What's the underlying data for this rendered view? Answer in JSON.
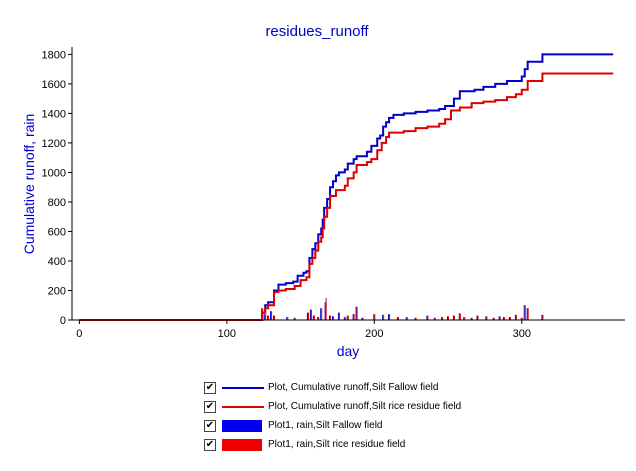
{
  "chart_data": {
    "type": "line",
    "title": "residues_runoff",
    "xlabel": "day",
    "ylabel": "Cumulative runoff, rain",
    "xlim": [
      -5,
      370
    ],
    "ylim": [
      0,
      1850
    ],
    "xticks": [
      0,
      100,
      200,
      300
    ],
    "yticks": [
      0,
      200,
      400,
      600,
      800,
      1000,
      1200,
      1400,
      1600,
      1800
    ],
    "grid": false,
    "legend_position": "bottom",
    "series": [
      {
        "name": "Plot, Cumulative runoff,Silt Fallow field",
        "kind": "line",
        "color": "#0000cc",
        "points": [
          [
            0,
            0
          ],
          [
            122,
            0
          ],
          [
            124,
            50
          ],
          [
            126,
            100
          ],
          [
            128,
            120
          ],
          [
            132,
            200
          ],
          [
            135,
            240
          ],
          [
            140,
            250
          ],
          [
            145,
            260
          ],
          [
            148,
            300
          ],
          [
            152,
            320
          ],
          [
            154,
            330
          ],
          [
            156,
            420
          ],
          [
            158,
            480
          ],
          [
            160,
            520
          ],
          [
            162,
            580
          ],
          [
            164,
            620
          ],
          [
            165,
            680
          ],
          [
            166,
            760
          ],
          [
            168,
            820
          ],
          [
            170,
            900
          ],
          [
            172,
            940
          ],
          [
            174,
            980
          ],
          [
            176,
            1000
          ],
          [
            180,
            1020
          ],
          [
            182,
            1060
          ],
          [
            186,
            1090
          ],
          [
            188,
            1110
          ],
          [
            195,
            1140
          ],
          [
            198,
            1180
          ],
          [
            202,
            1230
          ],
          [
            204,
            1250
          ],
          [
            206,
            1310
          ],
          [
            208,
            1340
          ],
          [
            210,
            1370
          ],
          [
            213,
            1390
          ],
          [
            220,
            1400
          ],
          [
            228,
            1410
          ],
          [
            236,
            1420
          ],
          [
            244,
            1430
          ],
          [
            248,
            1450
          ],
          [
            254,
            1500
          ],
          [
            258,
            1550
          ],
          [
            268,
            1560
          ],
          [
            274,
            1580
          ],
          [
            282,
            1600
          ],
          [
            290,
            1620
          ],
          [
            300,
            1650
          ],
          [
            302,
            1700
          ],
          [
            304,
            1750
          ],
          [
            314,
            1800
          ],
          [
            362,
            1800
          ]
        ]
      },
      {
        "name": "Plot, Cumulative runoff,Silt rice residue field",
        "kind": "line",
        "color": "#dd0000",
        "points": [
          [
            0,
            0
          ],
          [
            122,
            0
          ],
          [
            124,
            50
          ],
          [
            126,
            80
          ],
          [
            128,
            100
          ],
          [
            132,
            190
          ],
          [
            135,
            200
          ],
          [
            140,
            210
          ],
          [
            146,
            230
          ],
          [
            150,
            270
          ],
          [
            154,
            290
          ],
          [
            156,
            380
          ],
          [
            158,
            420
          ],
          [
            160,
            470
          ],
          [
            162,
            530
          ],
          [
            164,
            560
          ],
          [
            165,
            620
          ],
          [
            166,
            700
          ],
          [
            168,
            760
          ],
          [
            170,
            840
          ],
          [
            174,
            880
          ],
          [
            180,
            910
          ],
          [
            182,
            960
          ],
          [
            186,
            1000
          ],
          [
            188,
            1050
          ],
          [
            195,
            1070
          ],
          [
            198,
            1090
          ],
          [
            202,
            1150
          ],
          [
            205,
            1200
          ],
          [
            208,
            1240
          ],
          [
            210,
            1270
          ],
          [
            220,
            1280
          ],
          [
            228,
            1300
          ],
          [
            236,
            1310
          ],
          [
            244,
            1330
          ],
          [
            248,
            1360
          ],
          [
            252,
            1420
          ],
          [
            258,
            1440
          ],
          [
            266,
            1470
          ],
          [
            274,
            1480
          ],
          [
            282,
            1490
          ],
          [
            290,
            1510
          ],
          [
            296,
            1530
          ],
          [
            300,
            1560
          ],
          [
            304,
            1620
          ],
          [
            314,
            1670
          ],
          [
            362,
            1670
          ]
        ]
      },
      {
        "name": "Plot1, rain,Silt Fallow field",
        "kind": "bar",
        "color": "#0000cc",
        "points": [
          [
            124,
            80
          ],
          [
            126,
            40
          ],
          [
            128,
            30
          ],
          [
            130,
            60
          ],
          [
            132,
            30
          ],
          [
            141,
            20
          ],
          [
            146,
            15
          ],
          [
            155,
            50
          ],
          [
            157,
            70
          ],
          [
            159,
            30
          ],
          [
            162,
            20
          ],
          [
            164,
            80
          ],
          [
            167,
            120
          ],
          [
            170,
            30
          ],
          [
            172,
            25
          ],
          [
            176,
            50
          ],
          [
            180,
            20
          ],
          [
            182,
            30
          ],
          [
            186,
            40
          ],
          [
            188,
            90
          ],
          [
            192,
            15
          ],
          [
            200,
            40
          ],
          [
            206,
            35
          ],
          [
            210,
            40
          ],
          [
            216,
            20
          ],
          [
            222,
            20
          ],
          [
            228,
            15
          ],
          [
            236,
            30
          ],
          [
            241,
            15
          ],
          [
            246,
            20
          ],
          [
            250,
            25
          ],
          [
            254,
            30
          ],
          [
            258,
            45
          ],
          [
            261,
            20
          ],
          [
            266,
            15
          ],
          [
            270,
            30
          ],
          [
            276,
            25
          ],
          [
            281,
            15
          ],
          [
            285,
            25
          ],
          [
            288,
            20
          ],
          [
            292,
            20
          ],
          [
            296,
            35
          ],
          [
            300,
            15
          ],
          [
            302,
            100
          ],
          [
            304,
            80
          ],
          [
            314,
            35
          ]
        ]
      },
      {
        "name": "Plot1, rain,Silt rice residue field",
        "kind": "bar",
        "color": "#dd0000",
        "points": [
          [
            124,
            80
          ],
          [
            126,
            40
          ],
          [
            128,
            30
          ],
          [
            130,
            60
          ],
          [
            132,
            30
          ],
          [
            141,
            20
          ],
          [
            146,
            15
          ],
          [
            155,
            50
          ],
          [
            157,
            70
          ],
          [
            159,
            30
          ],
          [
            162,
            20
          ],
          [
            164,
            80
          ],
          [
            167,
            150
          ],
          [
            170,
            30
          ],
          [
            172,
            25
          ],
          [
            176,
            50
          ],
          [
            180,
            20
          ],
          [
            182,
            30
          ],
          [
            186,
            40
          ],
          [
            188,
            90
          ],
          [
            192,
            15
          ],
          [
            200,
            40
          ],
          [
            206,
            35
          ],
          [
            210,
            40
          ],
          [
            216,
            20
          ],
          [
            222,
            20
          ],
          [
            228,
            15
          ],
          [
            236,
            30
          ],
          [
            241,
            15
          ],
          [
            246,
            20
          ],
          [
            250,
            25
          ],
          [
            254,
            30
          ],
          [
            258,
            45
          ],
          [
            261,
            20
          ],
          [
            266,
            15
          ],
          [
            270,
            30
          ],
          [
            276,
            25
          ],
          [
            281,
            15
          ],
          [
            285,
            25
          ],
          [
            288,
            20
          ],
          [
            292,
            20
          ],
          [
            296,
            35
          ],
          [
            300,
            15
          ],
          [
            302,
            100
          ],
          [
            304,
            80
          ],
          [
            314,
            35
          ]
        ]
      }
    ]
  },
  "legend": {
    "items": [
      {
        "label": "Plot, Cumulative runoff,Silt Fallow field",
        "checked": "✔"
      },
      {
        "label": "Plot, Cumulative runoff,Silt rice residue field",
        "checked": "✔"
      },
      {
        "label": "Plot1, rain,Silt Fallow field",
        "checked": "✔"
      },
      {
        "label": "Plot1, rain,Silt rice residue field",
        "checked": "✔"
      }
    ]
  }
}
